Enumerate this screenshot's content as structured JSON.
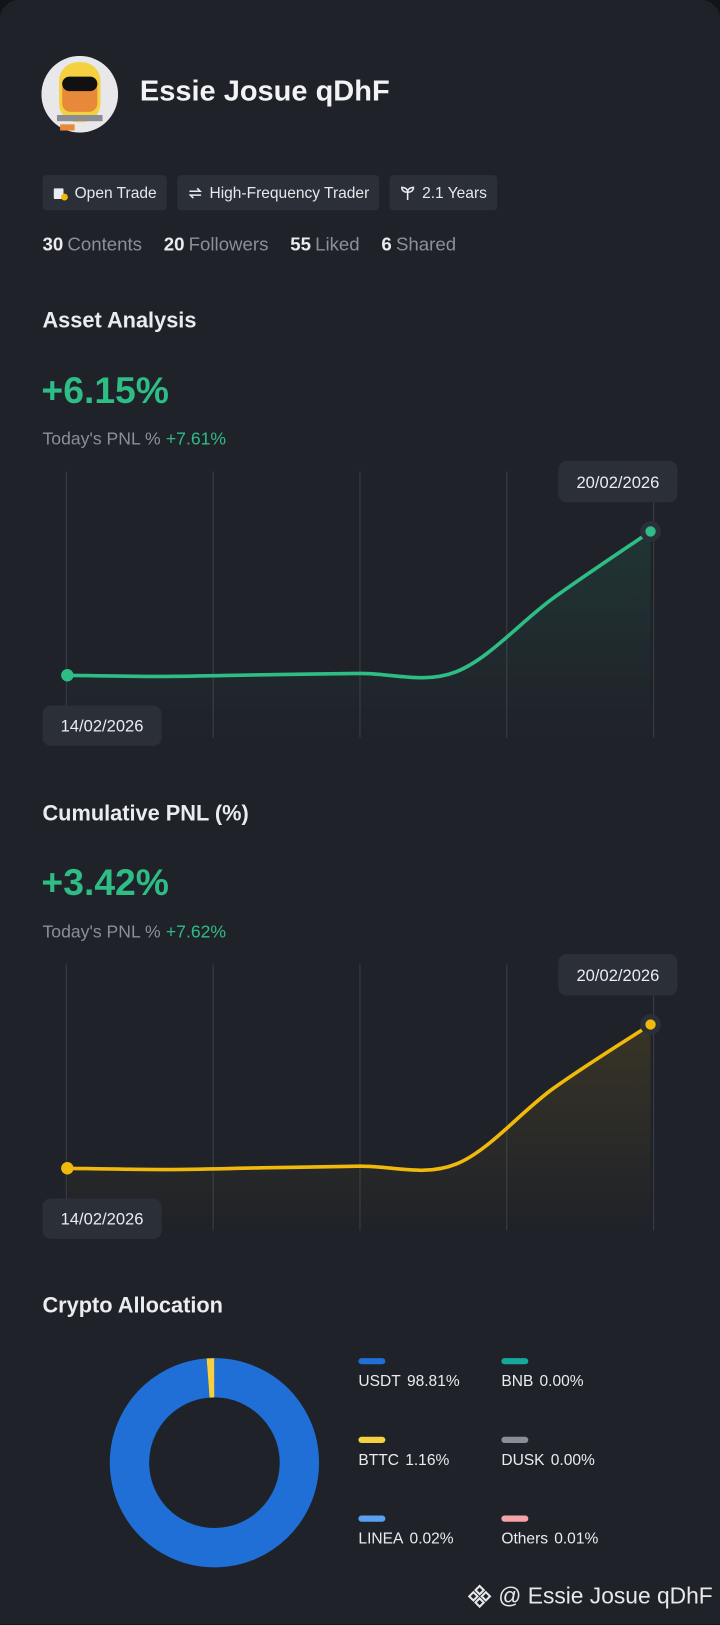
{
  "profile": {
    "name": "Essie Josue qDhF",
    "tags": [
      "Open Trade",
      "High-Frequency Trader",
      "2.1 Years"
    ],
    "stats": [
      {
        "value": 30,
        "label": "Contents"
      },
      {
        "value": 20,
        "label": "Followers"
      },
      {
        "value": 55,
        "label": "Liked"
      },
      {
        "value": 6,
        "label": "Shared"
      }
    ]
  },
  "chart_data": [
    {
      "type": "line",
      "title": "Asset Analysis",
      "headline": "+6.15%",
      "today_label": "Today's PNL %",
      "today_value": "+7.61%",
      "x": [
        "14/02/2026",
        null,
        null,
        null,
        null,
        null,
        "20/02/2026"
      ],
      "series": [
        {
          "color": "#2ebd85",
          "values": [
            0,
            -0.05,
            0.02,
            0.08,
            0.15,
            3.3,
            6.15
          ]
        }
      ]
    },
    {
      "type": "line",
      "title": "Cumulative PNL (%)",
      "headline": "+3.42%",
      "today_label": "Today's PNL %",
      "today_value": "+7.62%",
      "x": [
        "14/02/2026",
        null,
        null,
        null,
        null,
        null,
        "20/02/2026"
      ],
      "series": [
        {
          "color": "#f0b90b",
          "values": [
            0,
            -0.03,
            0.01,
            0.05,
            0.1,
            1.9,
            3.42
          ]
        }
      ]
    },
    {
      "type": "pie",
      "title": "Crypto Allocation",
      "categories": [
        "USDT",
        "BNB",
        "BTTC",
        "DUSK",
        "LINEA",
        "Others"
      ],
      "values": [
        98.81,
        0,
        1.16,
        0,
        0.02,
        0.01
      ],
      "value_labels": [
        "98.81%",
        "0.00%",
        "1.16%",
        "0.00%",
        "0.02%",
        "0.01%"
      ],
      "colors": [
        "#1f6fd6",
        "#17a89c",
        "#f5d142",
        "#8a8d94",
        "#5a9ff0",
        "#f4a3a8"
      ]
    }
  ],
  "watermark": "@ Essie Josue qDhF"
}
